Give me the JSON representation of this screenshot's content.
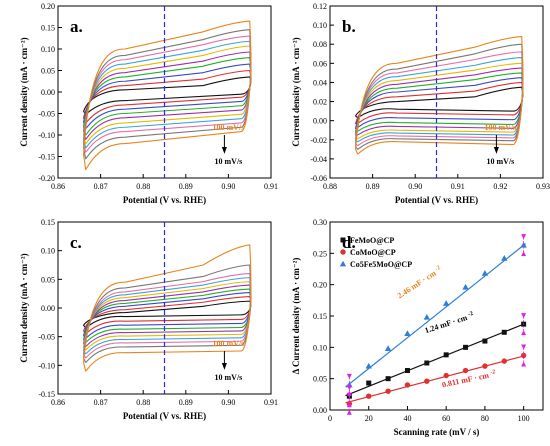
{
  "chart_data": [
    {
      "id": "a",
      "type": "line",
      "panel_label": "a.",
      "xlabel": "Potential (V vs. RHE)",
      "ylabel": "Current density (mA · cm⁻²)",
      "xlim": [
        0.86,
        0.91
      ],
      "ylim": [
        -0.2,
        0.2
      ],
      "xticks": [
        "0.86",
        "0.87",
        "0.88",
        "0.89",
        "0.90",
        "0.91"
      ],
      "yticks": [
        "-0.20",
        "-0.15",
        "-0.10",
        "-0.05",
        "0.00",
        "0.05",
        "0.10",
        "0.15",
        "0.20"
      ],
      "x_range": [
        0.866,
        0.905
      ],
      "dashed_line_x": 0.885,
      "annotation_top": "100 mV/s",
      "annotation_bottom": "10 mV/s",
      "series": [
        {
          "scan_rate": 10,
          "color": "#111111",
          "anodic": [
            -0.045,
            0.005,
            0.015,
            0.035
          ],
          "cathodic": [
            -0.02,
            -0.02,
            -0.005,
            -0.052
          ]
        },
        {
          "scan_rate": 20,
          "color": "#e03030",
          "anodic": [
            -0.06,
            0.015,
            0.03,
            0.05
          ],
          "cathodic": [
            -0.03,
            -0.03,
            -0.012,
            -0.072
          ]
        },
        {
          "scan_rate": 30,
          "color": "#3a49c8",
          "anodic": [
            -0.07,
            0.025,
            0.045,
            0.065
          ],
          "cathodic": [
            -0.04,
            -0.04,
            -0.022,
            -0.085
          ]
        },
        {
          "scan_rate": 40,
          "color": "#22b022",
          "anodic": [
            -0.08,
            0.035,
            0.06,
            0.08
          ],
          "cathodic": [
            -0.05,
            -0.05,
            -0.032,
            -0.1
          ]
        },
        {
          "scan_rate": 50,
          "color": "#9b2fb0",
          "anodic": [
            -0.09,
            0.045,
            0.072,
            0.093
          ],
          "cathodic": [
            -0.06,
            -0.06,
            -0.042,
            -0.11
          ]
        },
        {
          "scan_rate": 60,
          "color": "#e6b800",
          "anodic": [
            -0.1,
            0.055,
            0.085,
            0.107
          ],
          "cathodic": [
            -0.072,
            -0.072,
            -0.052,
            -0.12
          ]
        },
        {
          "scan_rate": 70,
          "color": "#3aa3d8",
          "anodic": [
            -0.11,
            0.065,
            0.097,
            0.118
          ],
          "cathodic": [
            -0.082,
            -0.082,
            -0.062,
            -0.13
          ]
        },
        {
          "scan_rate": 80,
          "color": "#e46fa8",
          "anodic": [
            -0.12,
            0.075,
            0.11,
            0.13
          ],
          "cathodic": [
            -0.092,
            -0.092,
            -0.072,
            -0.14
          ]
        },
        {
          "scan_rate": 90,
          "color": "#777777",
          "anodic": [
            -0.13,
            0.085,
            0.122,
            0.145
          ],
          "cathodic": [
            -0.105,
            -0.105,
            -0.082,
            -0.155
          ]
        },
        {
          "scan_rate": 100,
          "color": "#e8851e",
          "anodic": [
            -0.145,
            0.1,
            0.14,
            0.165
          ],
          "cathodic": [
            -0.12,
            -0.12,
            -0.092,
            -0.18
          ]
        }
      ]
    },
    {
      "id": "b",
      "type": "line",
      "panel_label": "b.",
      "xlabel": "Potential (V vs. RHE)",
      "ylabel": "Current density (mA · cm⁻²)",
      "xlim": [
        0.88,
        0.93
      ],
      "ylim": [
        -0.06,
        0.12
      ],
      "xticks": [
        "0.88",
        "0.89",
        "0.90",
        "0.91",
        "0.92",
        "0.93"
      ],
      "yticks": [
        "-0.06",
        "-0.04",
        "-0.02",
        "0.00",
        "0.02",
        "0.04",
        "0.06",
        "0.08",
        "0.10",
        "0.12"
      ],
      "x_range": [
        0.886,
        0.925
      ],
      "dashed_line_x": 0.905,
      "annotation_top": "100 mV/s",
      "annotation_bottom": "10 mV/s",
      "series": [
        {
          "scan_rate": 10,
          "color": "#111111",
          "anodic": [
            0.005,
            0.02,
            0.025,
            0.035
          ],
          "cathodic": [
            0.015,
            0.012,
            0.01,
            0.003
          ]
        },
        {
          "scan_rate": 20,
          "color": "#e03030",
          "anodic": [
            -0.003,
            0.025,
            0.031,
            0.04
          ],
          "cathodic": [
            0.01,
            0.008,
            0.006,
            -0.003
          ]
        },
        {
          "scan_rate": 30,
          "color": "#3a49c8",
          "anodic": [
            -0.008,
            0.03,
            0.037,
            0.045
          ],
          "cathodic": [
            0.005,
            0.003,
            0.001,
            -0.007
          ]
        },
        {
          "scan_rate": 40,
          "color": "#22b022",
          "anodic": [
            -0.012,
            0.034,
            0.043,
            0.05
          ],
          "cathodic": [
            0.0,
            -0.002,
            -0.004,
            -0.011
          ]
        },
        {
          "scan_rate": 50,
          "color": "#9b2fb0",
          "anodic": [
            -0.015,
            0.038,
            0.048,
            0.055
          ],
          "cathodic": [
            -0.004,
            -0.006,
            -0.008,
            -0.015
          ]
        },
        {
          "scan_rate": 60,
          "color": "#e6b800",
          "anodic": [
            -0.018,
            0.042,
            0.053,
            0.06
          ],
          "cathodic": [
            -0.008,
            -0.01,
            -0.012,
            -0.019
          ]
        },
        {
          "scan_rate": 70,
          "color": "#3aa3d8",
          "anodic": [
            -0.021,
            0.046,
            0.058,
            0.066
          ],
          "cathodic": [
            -0.011,
            -0.013,
            -0.015,
            -0.022
          ]
        },
        {
          "scan_rate": 80,
          "color": "#e46fa8",
          "anodic": [
            -0.024,
            0.05,
            0.064,
            0.072
          ],
          "cathodic": [
            -0.014,
            -0.016,
            -0.018,
            -0.026
          ]
        },
        {
          "scan_rate": 90,
          "color": "#777777",
          "anodic": [
            -0.027,
            0.054,
            0.07,
            0.08
          ],
          "cathodic": [
            -0.017,
            -0.019,
            -0.021,
            -0.03
          ]
        },
        {
          "scan_rate": 100,
          "color": "#e8851e",
          "anodic": [
            -0.03,
            0.06,
            0.077,
            0.088
          ],
          "cathodic": [
            -0.02,
            -0.022,
            -0.025,
            -0.035
          ]
        }
      ]
    },
    {
      "id": "c",
      "type": "line",
      "panel_label": "c.",
      "xlabel": "Potential (V vs. RHE)",
      "ylabel": "Current density (mA · cm⁻²)",
      "xlim": [
        0.86,
        0.91
      ],
      "ylim": [
        -0.15,
        0.15
      ],
      "xticks": [
        "0.86",
        "0.87",
        "0.88",
        "0.89",
        "0.90",
        "0.91"
      ],
      "yticks": [
        "-0.15",
        "-0.10",
        "-0.05",
        "0.00",
        "0.05",
        "0.10",
        "0.15"
      ],
      "x_range": [
        0.866,
        0.905
      ],
      "dashed_line_x": 0.885,
      "annotation_top": "100 mV/s",
      "annotation_bottom": "10 mV/s",
      "series": [
        {
          "scan_rate": 10,
          "color": "#111111",
          "anodic": [
            -0.03,
            -0.008,
            0.003,
            0.012
          ],
          "cathodic": [
            -0.012,
            -0.015,
            -0.012,
            -0.035
          ]
        },
        {
          "scan_rate": 20,
          "color": "#e03030",
          "anodic": [
            -0.04,
            -0.003,
            0.01,
            0.02
          ],
          "cathodic": [
            -0.02,
            -0.023,
            -0.02,
            -0.045
          ]
        },
        {
          "scan_rate": 30,
          "color": "#3a49c8",
          "anodic": [
            -0.048,
            0.003,
            0.016,
            0.027
          ],
          "cathodic": [
            -0.027,
            -0.03,
            -0.027,
            -0.053
          ]
        },
        {
          "scan_rate": 40,
          "color": "#22b022",
          "anodic": [
            -0.055,
            0.008,
            0.022,
            0.033
          ],
          "cathodic": [
            -0.034,
            -0.037,
            -0.034,
            -0.06
          ]
        },
        {
          "scan_rate": 50,
          "color": "#9b2fb0",
          "anodic": [
            -0.062,
            0.013,
            0.028,
            0.04
          ],
          "cathodic": [
            -0.04,
            -0.043,
            -0.04,
            -0.067
          ]
        },
        {
          "scan_rate": 60,
          "color": "#e6b800",
          "anodic": [
            -0.068,
            0.018,
            0.034,
            0.046
          ],
          "cathodic": [
            -0.046,
            -0.049,
            -0.046,
            -0.073
          ]
        },
        {
          "scan_rate": 70,
          "color": "#3aa3d8",
          "anodic": [
            -0.074,
            0.023,
            0.04,
            0.053
          ],
          "cathodic": [
            -0.052,
            -0.055,
            -0.052,
            -0.08
          ]
        },
        {
          "scan_rate": 80,
          "color": "#e46fa8",
          "anodic": [
            -0.08,
            0.028,
            0.046,
            0.06
          ],
          "cathodic": [
            -0.058,
            -0.061,
            -0.058,
            -0.087
          ]
        },
        {
          "scan_rate": 90,
          "color": "#777777",
          "anodic": [
            -0.087,
            0.035,
            0.055,
            0.075
          ],
          "cathodic": [
            -0.065,
            -0.068,
            -0.065,
            -0.095
          ]
        },
        {
          "scan_rate": 100,
          "color": "#e8851e",
          "anodic": [
            -0.095,
            0.045,
            0.075,
            0.11
          ],
          "cathodic": [
            -0.075,
            -0.078,
            -0.075,
            -0.11
          ]
        }
      ]
    },
    {
      "id": "d",
      "type": "scatter",
      "panel_label": "d.",
      "xlabel": "Scanning rate (mV / s)",
      "ylabel": "Δ Current density (mA · cm⁻²)",
      "xlim": [
        0,
        110
      ],
      "ylim": [
        0,
        0.3
      ],
      "xticks": [
        "0",
        "20",
        "40",
        "60",
        "80",
        "100"
      ],
      "yticks": [
        "0.00",
        "0.05",
        "0.10",
        "0.15",
        "0.20",
        "0.25",
        "0.30"
      ],
      "x": [
        10,
        20,
        30,
        40,
        50,
        60,
        70,
        80,
        90,
        100
      ],
      "series": [
        {
          "name": "FeMoO@CP",
          "color": "#111111",
          "marker": "square",
          "values": [
            0.022,
            0.043,
            0.05,
            0.063,
            0.075,
            0.088,
            0.1,
            0.11,
            0.124,
            0.137
          ],
          "fit_label": "1.24 mF · cm",
          "fit_exp": "-2",
          "slope": 0.00124,
          "intercept": 0.013
        },
        {
          "name": "CoMoO@CP",
          "color": "#e03030",
          "marker": "circle",
          "values": [
            0.01,
            0.022,
            0.03,
            0.04,
            0.046,
            0.055,
            0.063,
            0.07,
            0.078,
            0.087
          ],
          "fit_label": "0.811 mF · cm",
          "fit_exp": "-2",
          "slope": 0.000811,
          "intercept": 0.005
        },
        {
          "name": "Co5Fe5MoO@CP",
          "color": "#2f7fd8",
          "marker": "triangle",
          "values": [
            0.04,
            0.07,
            0.098,
            0.122,
            0.148,
            0.17,
            0.196,
            0.218,
            0.242,
            0.263
          ],
          "fit_label": "2.46 mF · cm",
          "fit_exp": "-2",
          "slope": 0.00246,
          "intercept": 0.017
        }
      ],
      "error_markers_x": [
        10,
        100
      ]
    }
  ]
}
